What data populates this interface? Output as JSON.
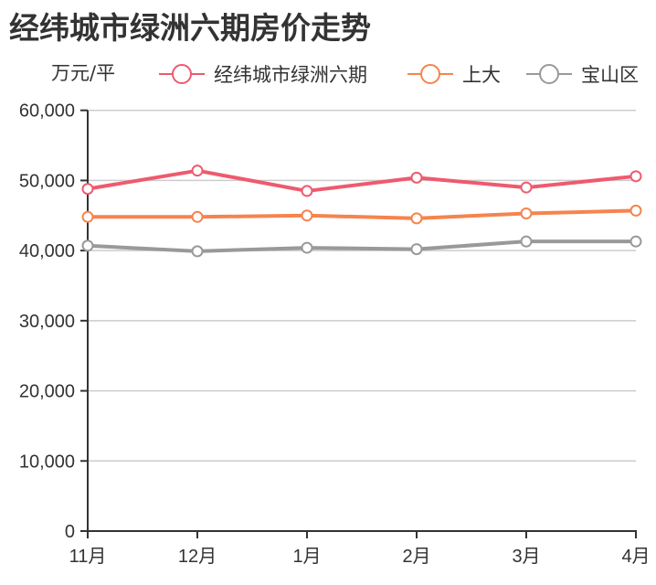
{
  "title": "经纬城市绿洲六期房价走势",
  "unit_label": "万元/平",
  "legend": [
    {
      "label": "经纬城市绿洲六期",
      "color": "#ee5a6e",
      "icon": "line-circle-icon"
    },
    {
      "label": "上大",
      "color": "#f5844e",
      "icon": "line-circle-icon"
    },
    {
      "label": "宝山区",
      "color": "#999999",
      "icon": "line-circle-icon"
    }
  ],
  "chart_data": {
    "type": "line",
    "title": "经纬城市绿洲六期房价走势",
    "xlabel": "",
    "ylabel": "万元/平",
    "categories": [
      "11月",
      "12月",
      "1月",
      "2月",
      "3月",
      "4月"
    ],
    "ylim": [
      0,
      60000
    ],
    "yticks": [
      0,
      10000,
      20000,
      30000,
      40000,
      50000,
      60000
    ],
    "ytick_labels": [
      "0",
      "10,000",
      "20,000",
      "30,000",
      "40,000",
      "50,000",
      "60,000"
    ],
    "grid": true,
    "legend_position": "top",
    "series": [
      {
        "name": "经纬城市绿洲六期",
        "color": "#ee5a6e",
        "values": [
          48800,
          51400,
          48500,
          50400,
          49000,
          50600
        ]
      },
      {
        "name": "上大",
        "color": "#f5844e",
        "values": [
          44800,
          44800,
          45000,
          44600,
          45300,
          45700
        ]
      },
      {
        "name": "宝山区",
        "color": "#999999",
        "values": [
          40700,
          39900,
          40400,
          40200,
          41300,
          41300
        ]
      }
    ]
  }
}
